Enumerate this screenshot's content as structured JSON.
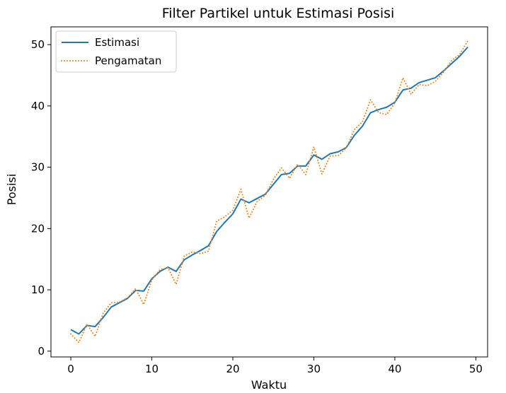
{
  "chart_data": {
    "type": "line",
    "title": "Filter Partikel untuk Estimasi Posisi",
    "xlabel": "Waktu",
    "ylabel": "Posisi",
    "xlim": [
      -2.45,
      51.45
    ],
    "ylim": [
      -0.95,
      52.9
    ],
    "xticks": [
      0,
      10,
      20,
      30,
      40,
      50
    ],
    "yticks": [
      0,
      10,
      20,
      30,
      40,
      50
    ],
    "grid": false,
    "legend_position": "upper-left",
    "x": [
      0,
      1,
      2,
      3,
      4,
      5,
      6,
      7,
      8,
      9,
      10,
      11,
      12,
      13,
      14,
      15,
      16,
      17,
      18,
      19,
      20,
      21,
      22,
      23,
      24,
      25,
      26,
      27,
      28,
      29,
      30,
      31,
      32,
      33,
      34,
      35,
      36,
      37,
      38,
      39,
      40,
      41,
      42,
      43,
      44,
      45,
      46,
      47,
      48,
      49
    ],
    "series": [
      {
        "name": "Estimasi",
        "color": "#1f77b4",
        "style": "solid",
        "values": [
          3.5,
          2.8,
          4.2,
          4.0,
          5.5,
          7.2,
          7.9,
          8.6,
          9.9,
          9.8,
          11.8,
          13.0,
          13.7,
          13.0,
          14.9,
          15.7,
          16.4,
          17.2,
          19.5,
          21.0,
          22.4,
          24.8,
          24.2,
          24.9,
          25.6,
          27.2,
          28.8,
          29.0,
          30.2,
          30.2,
          32.0,
          31.3,
          32.2,
          32.5,
          33.2,
          35.2,
          36.7,
          38.9,
          39.4,
          39.8,
          40.6,
          42.6,
          42.9,
          43.8,
          44.2,
          44.6,
          45.7,
          46.9,
          48.1,
          49.6
        ]
      },
      {
        "name": "Pengamatan",
        "color": "#ff7f0e",
        "style": "dotted",
        "values": [
          2.8,
          1.4,
          4.4,
          2.4,
          6.2,
          7.9,
          8.0,
          8.7,
          10.2,
          7.6,
          11.6,
          13.3,
          13.6,
          10.9,
          15.5,
          16.2,
          15.9,
          16.3,
          21.2,
          21.9,
          23.0,
          26.4,
          21.7,
          24.4,
          25.4,
          28.0,
          29.9,
          28.2,
          30.5,
          28.8,
          33.3,
          28.9,
          31.8,
          31.9,
          33.1,
          36.1,
          37.4,
          41.0,
          38.9,
          38.6,
          40.5,
          44.6,
          41.9,
          43.5,
          43.3,
          44.0,
          45.5,
          47.4,
          48.4,
          50.6
        ]
      }
    ]
  }
}
